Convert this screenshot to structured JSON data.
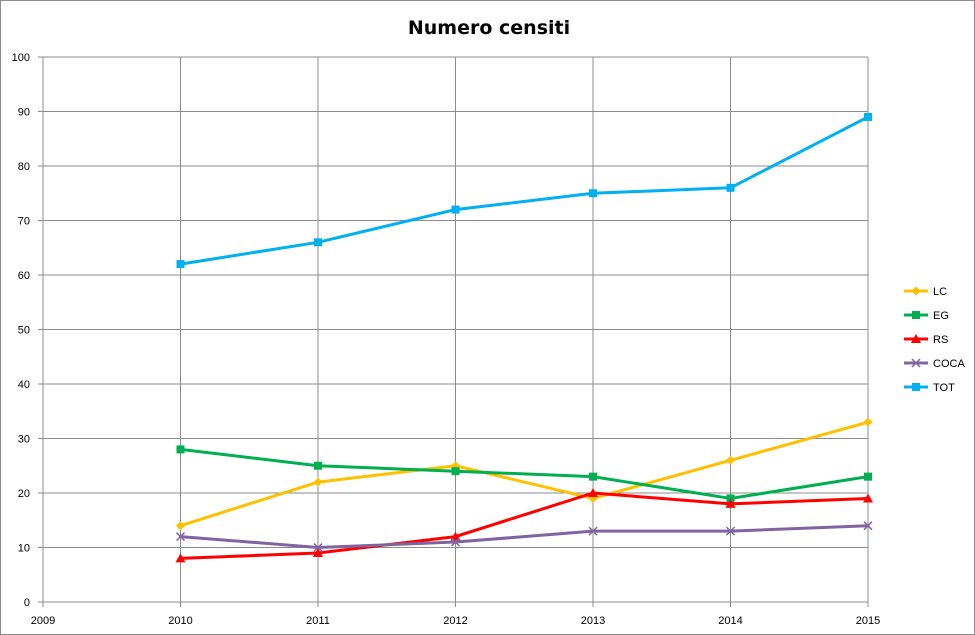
{
  "chart_data": {
    "type": "line",
    "title": "Numero censiti",
    "x": [
      2010,
      2011,
      2012,
      2013,
      2014,
      2015
    ],
    "xticks": [
      2009,
      2010,
      2011,
      2012,
      2013,
      2014,
      2015
    ],
    "xlim": [
      2009,
      2015
    ],
    "ylim": [
      0,
      100
    ],
    "yticks": [
      0,
      10,
      20,
      30,
      40,
      50,
      60,
      70,
      80,
      90,
      100
    ],
    "grid": true,
    "legend_position": "right",
    "series": [
      {
        "name": "LC",
        "color": "#FFC000",
        "marker": "diamond",
        "values": [
          14,
          22,
          25,
          19,
          26,
          33
        ]
      },
      {
        "name": "EG",
        "color": "#00B050",
        "marker": "square",
        "values": [
          28,
          25,
          24,
          23,
          19,
          23
        ]
      },
      {
        "name": "RS",
        "color": "#FF0000",
        "marker": "triangle",
        "values": [
          8,
          9,
          12,
          20,
          18,
          19
        ]
      },
      {
        "name": "COCA",
        "color": "#8064A2",
        "marker": "x",
        "values": [
          12,
          10,
          11,
          13,
          13,
          14
        ]
      },
      {
        "name": "TOT",
        "color": "#00B0F0",
        "marker": "square",
        "values": [
          62,
          66,
          72,
          75,
          76,
          89
        ]
      }
    ]
  }
}
